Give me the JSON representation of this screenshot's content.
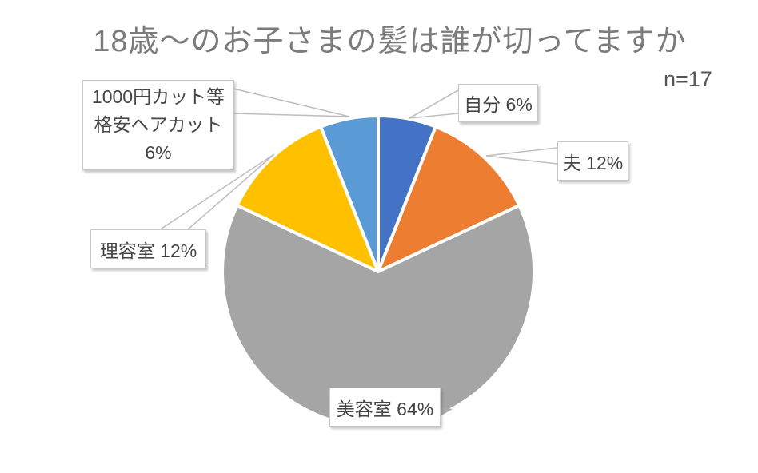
{
  "chart_data": {
    "type": "pie",
    "title": "18歳〜のお子さまの髪は誰が切ってますか",
    "sample_size_note": "n=17",
    "categories": [
      "自分",
      "夫",
      "美容室",
      "理容室",
      "1000円カット等格安ヘアカット"
    ],
    "category_keys": [
      "self",
      "husband",
      "beauty-salon",
      "barber",
      "cheap-cut"
    ],
    "values": [
      6,
      12,
      64,
      12,
      6
    ],
    "unit": "%",
    "colors": [
      "#4472C4",
      "#ED7D31",
      "#A5A5A5",
      "#FFC000",
      "#5B9BD5"
    ],
    "start_angle": "12-o-clock",
    "direction": "clockwise",
    "legend": "none",
    "slice_border_color": "#FFFFFF",
    "data_labels": [
      "自分 6%",
      "夫 12%",
      "美容室 64%",
      "理容室 12%",
      "1000円カット等格安ヘアカット 6%"
    ]
  },
  "callouts": {
    "self": {
      "text": "自分 6%"
    },
    "husband": {
      "text": "夫 12%"
    },
    "beauty_salon": {
      "text": "美容室 64%"
    },
    "barber": {
      "text": "理容室 12%"
    },
    "cheap_cut": {
      "line1": "1000円カット等",
      "line2": "格安ヘアカット",
      "line3": "6%"
    }
  },
  "styles": {
    "leader_line_color": "#bfbfbf",
    "pointer_fill_color": "#ababab"
  }
}
